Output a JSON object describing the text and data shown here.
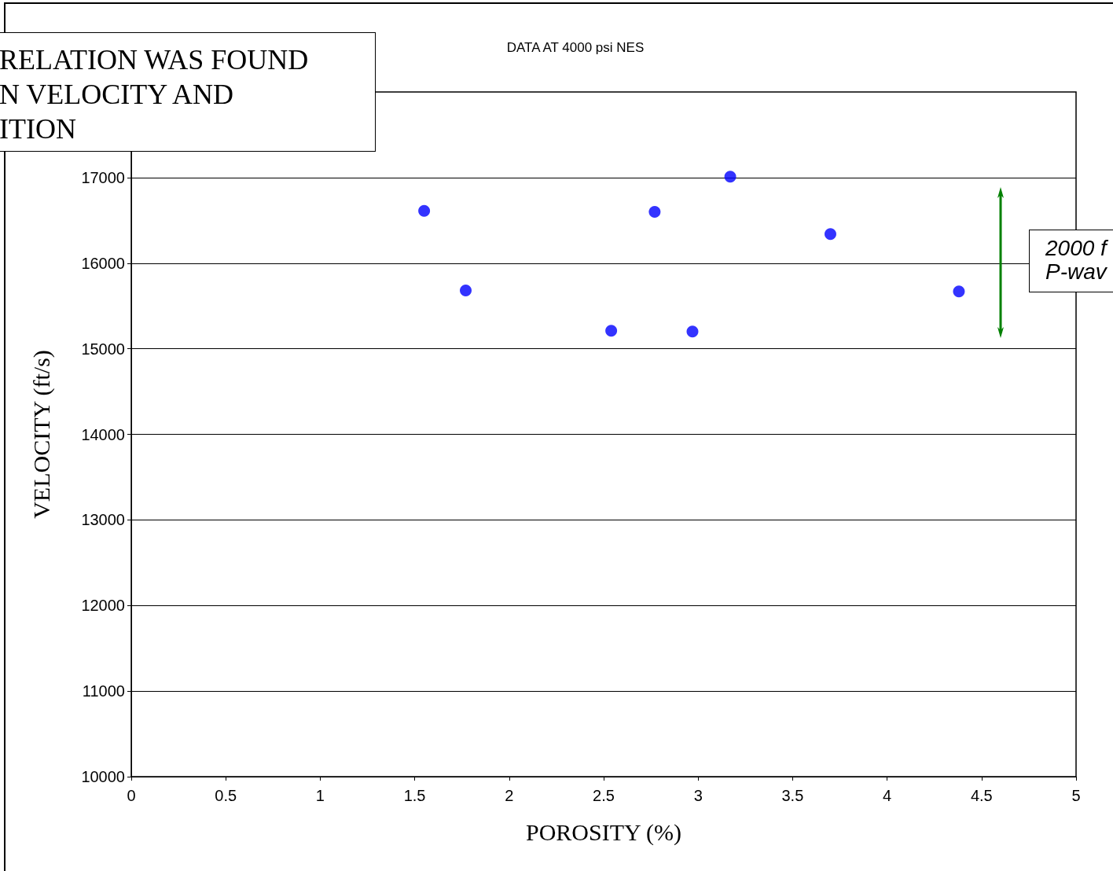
{
  "chart_data": {
    "type": "scatter",
    "title": "DATA AT 4000 psi NES",
    "xlabel": "POROSITY (%)",
    "ylabel": "VELOCITY (ft/s)",
    "x": [
      1.55,
      1.77,
      2.54,
      2.77,
      2.97,
      3.17,
      3.7,
      4.38
    ],
    "series": [
      {
        "color": "#0000ff",
        "values": [
          16610,
          15680,
          15210,
          16600,
          15200,
          17010,
          16340,
          15670
        ]
      }
    ],
    "xlim": [
      0,
      5
    ],
    "xticks": [
      0,
      0.5,
      1,
      1.5,
      2,
      2.5,
      3,
      3.5,
      4,
      4.5,
      5
    ],
    "ylim": [
      10000,
      18000
    ],
    "yticks": [
      10000,
      11000,
      12000,
      13000,
      14000,
      15000,
      16000,
      17000
    ],
    "grid": "y",
    "marker": "circle",
    "annotations": [
      "RELATION WAS FOUND\nN VELOCITY AND\nITION",
      "2000 f\nP-wav"
    ]
  }
}
